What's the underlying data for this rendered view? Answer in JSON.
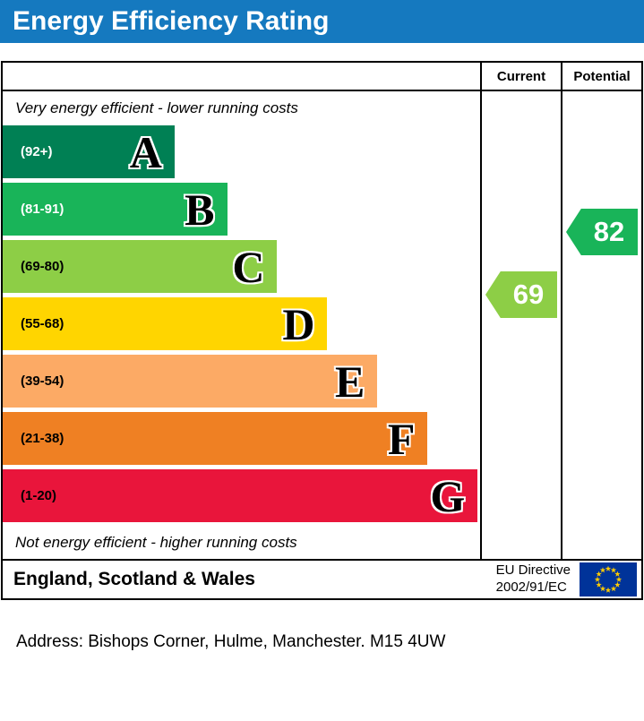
{
  "title": "Energy Efficiency Rating",
  "colors": {
    "title_bar": "#1579bf",
    "eu_flag_blue": "#003399",
    "eu_flag_star": "#ffcc00"
  },
  "header": {
    "current": "Current",
    "potential": "Potential"
  },
  "footer": {
    "region": "England, Scotland & Wales",
    "directive_line1": "EU Directive",
    "directive_line2": "2002/91/EC"
  },
  "address": "Address: Bishops Corner, Hulme, Manchester. M15 4UW",
  "chart_data": {
    "type": "bar",
    "title": "Energy Efficiency Rating",
    "top_note": "Very energy efficient - lower running costs",
    "bottom_note": "Not energy efficient - higher running costs",
    "bands": [
      {
        "letter": "A",
        "range": "(92+)",
        "color": "#008054",
        "range_color": "#ffffff",
        "width_pct": 36
      },
      {
        "letter": "B",
        "range": "(81-91)",
        "color": "#19b459",
        "range_color": "#ffffff",
        "width_pct": 47
      },
      {
        "letter": "C",
        "range": "(69-80)",
        "color": "#8dce46",
        "range_color": "#000000",
        "width_pct": 57.5
      },
      {
        "letter": "D",
        "range": "(55-68)",
        "color": "#ffd500",
        "range_color": "#000000",
        "width_pct": 68
      },
      {
        "letter": "E",
        "range": "(39-54)",
        "color": "#fcaa65",
        "range_color": "#000000",
        "width_pct": 78.5
      },
      {
        "letter": "F",
        "range": "(21-38)",
        "color": "#ef8023",
        "range_color": "#000000",
        "width_pct": 89
      },
      {
        "letter": "G",
        "range": "(1-20)",
        "color": "#e9153b",
        "range_color": "#000000",
        "width_pct": 99.5
      }
    ],
    "current": {
      "value": 69,
      "band": "C",
      "color": "#8dce46"
    },
    "potential": {
      "value": 82,
      "band": "B",
      "color": "#19b459"
    }
  }
}
